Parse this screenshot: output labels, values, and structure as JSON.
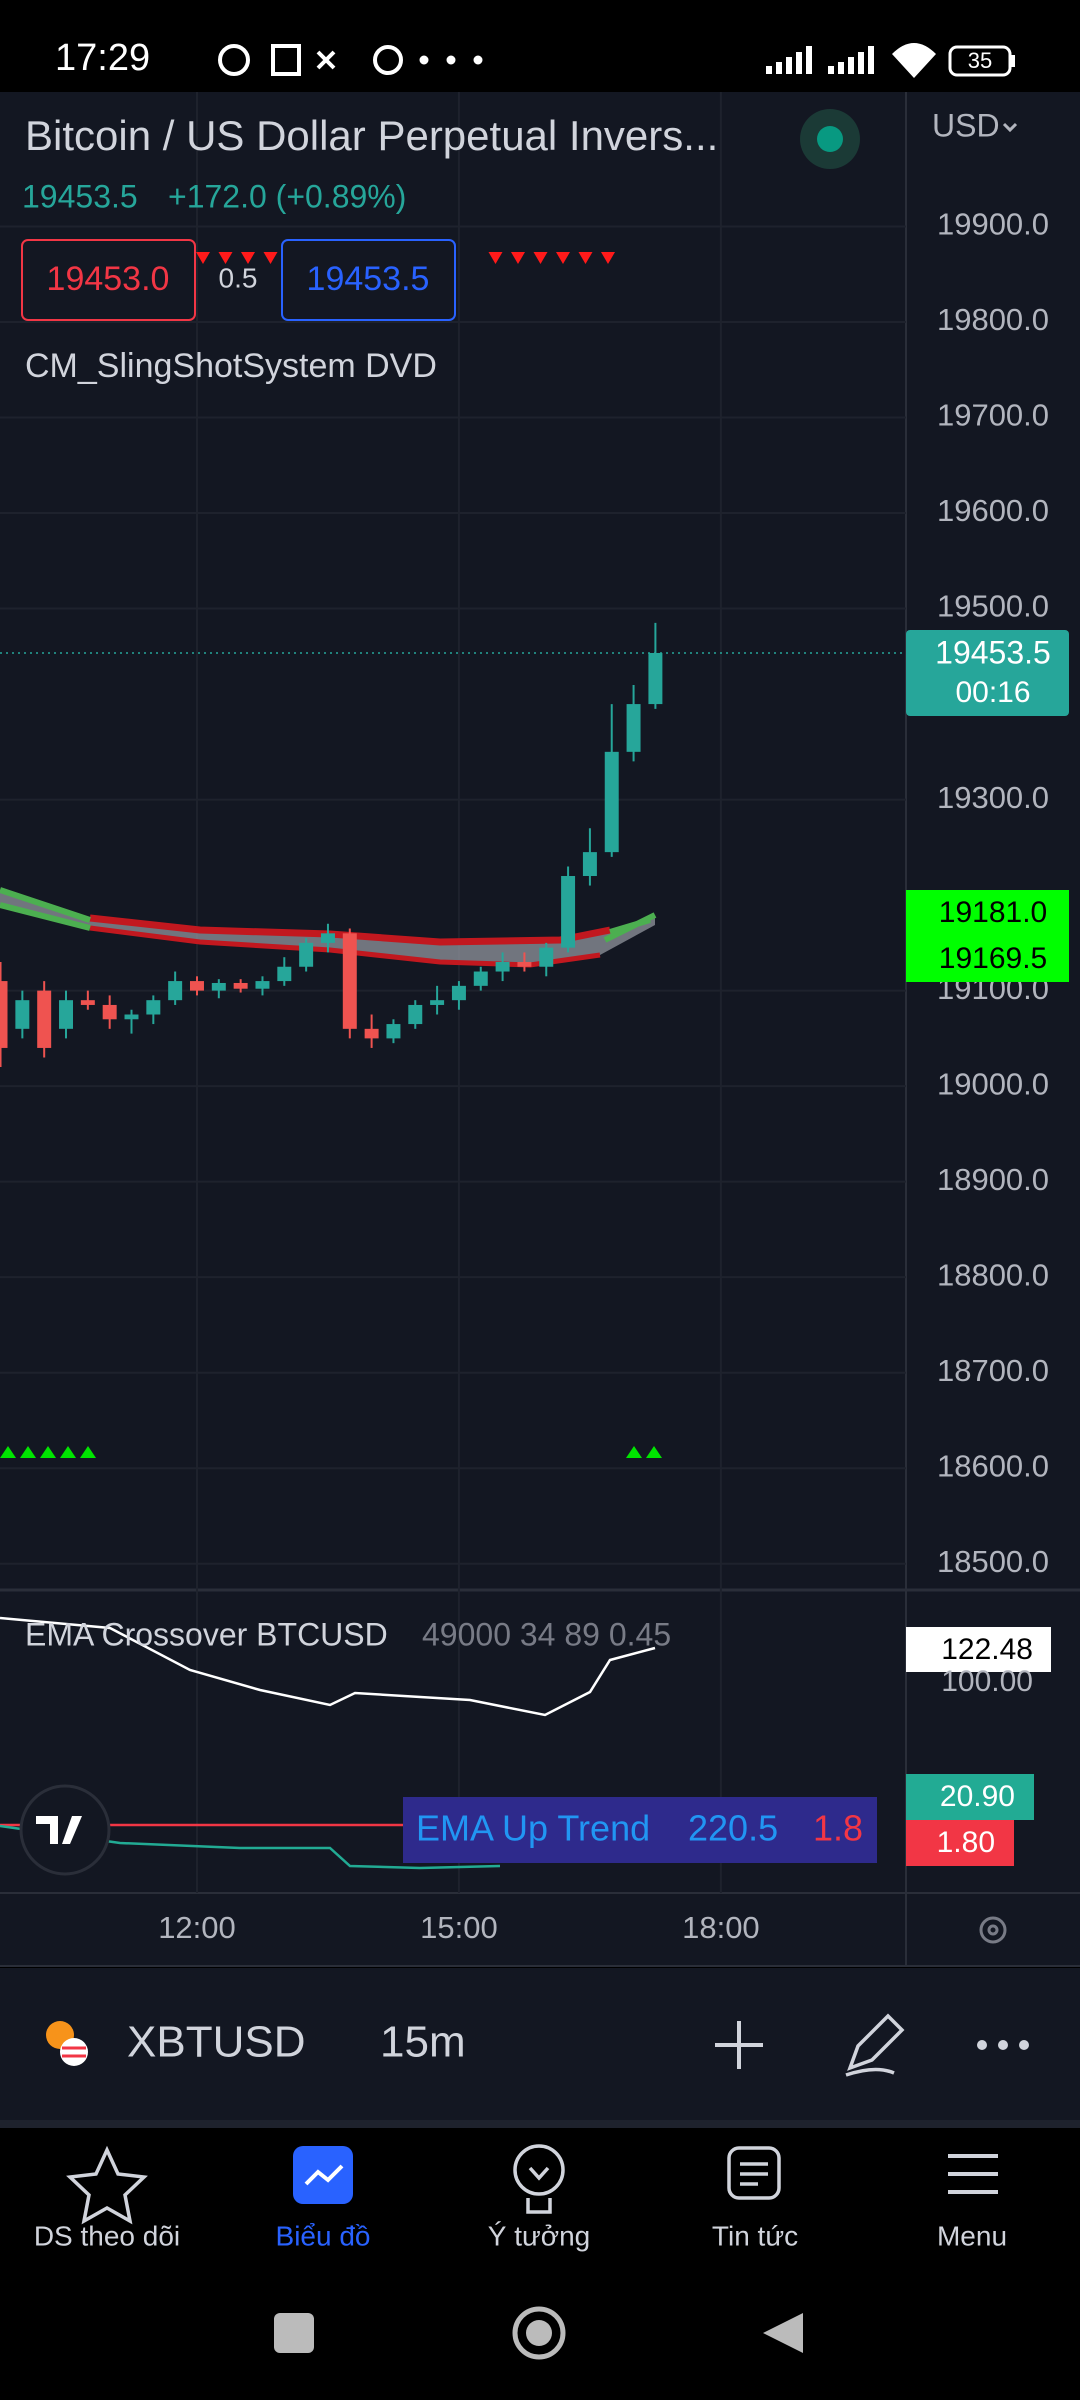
{
  "status_bar": {
    "time": "17:29",
    "battery": "35"
  },
  "header": {
    "title": "Bitcoin / US Dollar Perpetual Invers...",
    "currency": "USD",
    "last_price": "19453.5",
    "change": "+172.0 (+0.89%)",
    "bid": "19453.0",
    "spread": "0.5",
    "ask": "19453.5",
    "indicator": "CM_SlingShotSystem DVD"
  },
  "chart_data": {
    "type": "candlestick",
    "x": [
      9.75,
      10,
      10.25,
      10.5,
      10.75,
      11,
      11.25,
      11.5,
      11.75,
      12,
      12.25,
      12.5,
      12.75,
      13,
      13.25,
      13.5,
      13.75,
      14,
      14.25,
      14.5,
      14.75,
      15,
      15.25,
      15.5,
      15.75,
      16,
      16.25,
      16.5,
      16.75,
      17,
      17.25
    ],
    "open": [
      19110,
      19060,
      19100,
      19060,
      19090,
      19085,
      19070,
      19075,
      19090,
      19110,
      19100,
      19108,
      19102,
      19110,
      19125,
      19150,
      19160,
      19060,
      19050,
      19065,
      19085,
      19090,
      19105,
      19120,
      19130,
      19125,
      19145,
      19220,
      19245,
      19350,
      19400
    ],
    "high": [
      19130,
      19100,
      19110,
      19100,
      19100,
      19095,
      19080,
      19095,
      19120,
      19115,
      19112,
      19112,
      19115,
      19135,
      19155,
      19170,
      19165,
      19075,
      19070,
      19090,
      19105,
      19110,
      19125,
      19140,
      19140,
      19150,
      19230,
      19270,
      19400,
      19420,
      19485
    ],
    "low": [
      19020,
      19050,
      19030,
      19050,
      19080,
      19060,
      19055,
      19065,
      19085,
      19095,
      19092,
      19098,
      19095,
      19105,
      19120,
      19140,
      19050,
      19040,
      19045,
      19060,
      19075,
      19080,
      19100,
      19110,
      19120,
      19115,
      19140,
      19210,
      19240,
      19340,
      19395
    ],
    "close": [
      19040,
      19090,
      19040,
      19090,
      19085,
      19070,
      19075,
      19090,
      19110,
      19100,
      19108,
      19102,
      19110,
      19125,
      19150,
      19160,
      19060,
      19050,
      19065,
      19085,
      19090,
      19105,
      19120,
      19130,
      19125,
      19145,
      19220,
      19245,
      19350,
      19400,
      19453.5
    ],
    "up_color": "#26a69a",
    "down_color": "#ef5350",
    "xlim": [
      9.744,
      20.12
    ],
    "xticks": [
      {
        "value": 12,
        "label": "12:00"
      },
      {
        "value": 15,
        "label": "15:00"
      },
      {
        "value": 18,
        "label": "18:00"
      }
    ],
    "ylim": [
      18472.5,
      20040.8
    ],
    "yticks": [
      {
        "value": 19900,
        "label": "19900.0"
      },
      {
        "value": 19800,
        "label": "19800.0"
      },
      {
        "value": 19700,
        "label": "19700.0"
      },
      {
        "value": 19600,
        "label": "19600.0"
      },
      {
        "value": 19500,
        "label": "19500.0"
      },
      {
        "value": 19300,
        "label": "19300.0"
      },
      {
        "value": 19100,
        "label": "19100.0"
      },
      {
        "value": 19000,
        "label": "19000.0"
      },
      {
        "value": 18900,
        "label": "18900.0"
      },
      {
        "value": 18800,
        "label": "18800.0"
      },
      {
        "value": 18700,
        "label": "18700.0"
      },
      {
        "value": 18600,
        "label": "18600.0"
      },
      {
        "value": 18500,
        "label": "18500.0"
      }
    ],
    "grid": true,
    "price_label": "19453.5",
    "countdown": "00:16",
    "ema_labels": [
      "19181.0",
      "19169.5"
    ]
  },
  "lower_panel": {
    "title": "EMA Crossover BTCUSD",
    "params": "49000 34 89 0.45",
    "labels": [
      "122.48",
      "100.00",
      "20.90",
      "1.80"
    ],
    "trend_box": {
      "text": "EMA Up Trend",
      "value": "220.5",
      "ratio": "1.8"
    }
  },
  "toolbar": {
    "symbol": "XBTUSD",
    "interval": "15m"
  },
  "nav": [
    "DS theo dõi",
    "Biểu đồ",
    "Ý tưởng",
    "Tin tức",
    "Menu"
  ]
}
